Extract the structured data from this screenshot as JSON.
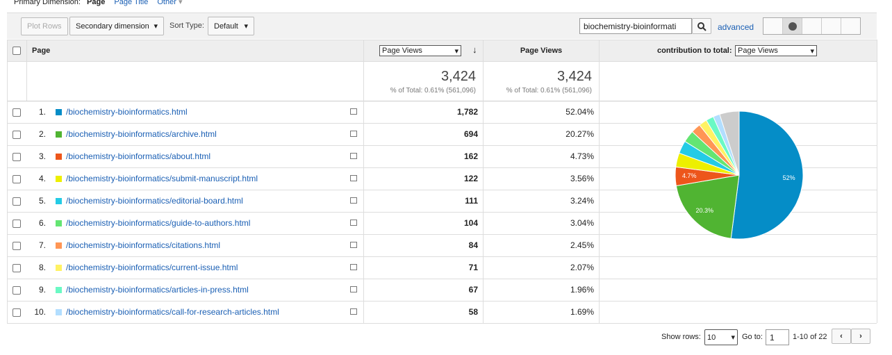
{
  "toolbar": {
    "primary_dimension_label": "Primary Dimension:",
    "primary_options": [
      "Page",
      "Page Title",
      "Other"
    ],
    "plot_rows": "Plot Rows",
    "secondary_dimension": "Secondary dimension",
    "sort_type_label": "Sort Type:",
    "sort_type": "Default",
    "search": "biochemistry-bioinformati",
    "advanced": "advanced"
  },
  "table": {
    "headers": {
      "page": "Page",
      "metric_select": "Page Views",
      "metric": "Page Views",
      "contribution_label": "contribution to total:",
      "contribution_select": "Page Views"
    },
    "totals": [
      {
        "value": "3,424",
        "sub": "% of Total: 0.61% (561,096)"
      },
      {
        "value": "3,424",
        "sub": "% of Total: 0.61% (561,096)"
      }
    ],
    "rows": [
      {
        "index": "1.",
        "page": "/biochemistry-bioinformatics.html",
        "views": "1,782",
        "percent": "52.04%"
      },
      {
        "index": "2.",
        "page": "/biochemistry-bioinformatics/archive.html",
        "views": "694",
        "percent": "20.27%"
      },
      {
        "index": "3.",
        "page": "/biochemistry-bioinformatics/about.html",
        "views": "162",
        "percent": "4.73%"
      },
      {
        "index": "4.",
        "page": "/biochemistry-bioinformatics/submit-manuscript.html",
        "views": "122",
        "percent": "3.56%"
      },
      {
        "index": "5.",
        "page": "/biochemistry-bioinformatics/editorial-board.html",
        "views": "111",
        "percent": "3.24%"
      },
      {
        "index": "6.",
        "page": "/biochemistry-bioinformatics/guide-to-authors.html",
        "views": "104",
        "percent": "3.04%"
      },
      {
        "index": "7.",
        "page": "/biochemistry-bioinformatics/citations.html",
        "views": "84",
        "percent": "2.45%"
      },
      {
        "index": "8.",
        "page": "/biochemistry-bioinformatics/current-issue.html",
        "views": "71",
        "percent": "2.07%"
      },
      {
        "index": "9.",
        "page": "/biochemistry-bioinformatics/articles-in-press.html",
        "views": "67",
        "percent": "1.96%"
      },
      {
        "index": "10.",
        "page": "/biochemistry-bioinformatics/call-for-research-articles.html",
        "views": "58",
        "percent": "1.69%"
      }
    ]
  },
  "chart_data": {
    "type": "pie",
    "values": [
      52.04,
      20.27,
      4.73,
      3.56,
      3.24,
      3.04,
      2.45,
      2.07,
      1.96,
      1.69
    ],
    "value_labels": [
      "52%",
      "20.3%",
      "4.7%",
      null,
      null,
      null,
      null,
      null,
      null,
      null
    ],
    "colors": [
      "#058dc7",
      "#50b432",
      "#ed561b",
      "#edef00",
      "#24cbe5",
      "#64e572",
      "#ff9655",
      "#fff263",
      "#6af9c4",
      "#b2deff"
    ]
  },
  "footer": {
    "show_rows_label": "Show rows:",
    "show_rows": "10",
    "goto_label": "Go to:",
    "goto": "1",
    "range": "1-10 of 22"
  }
}
